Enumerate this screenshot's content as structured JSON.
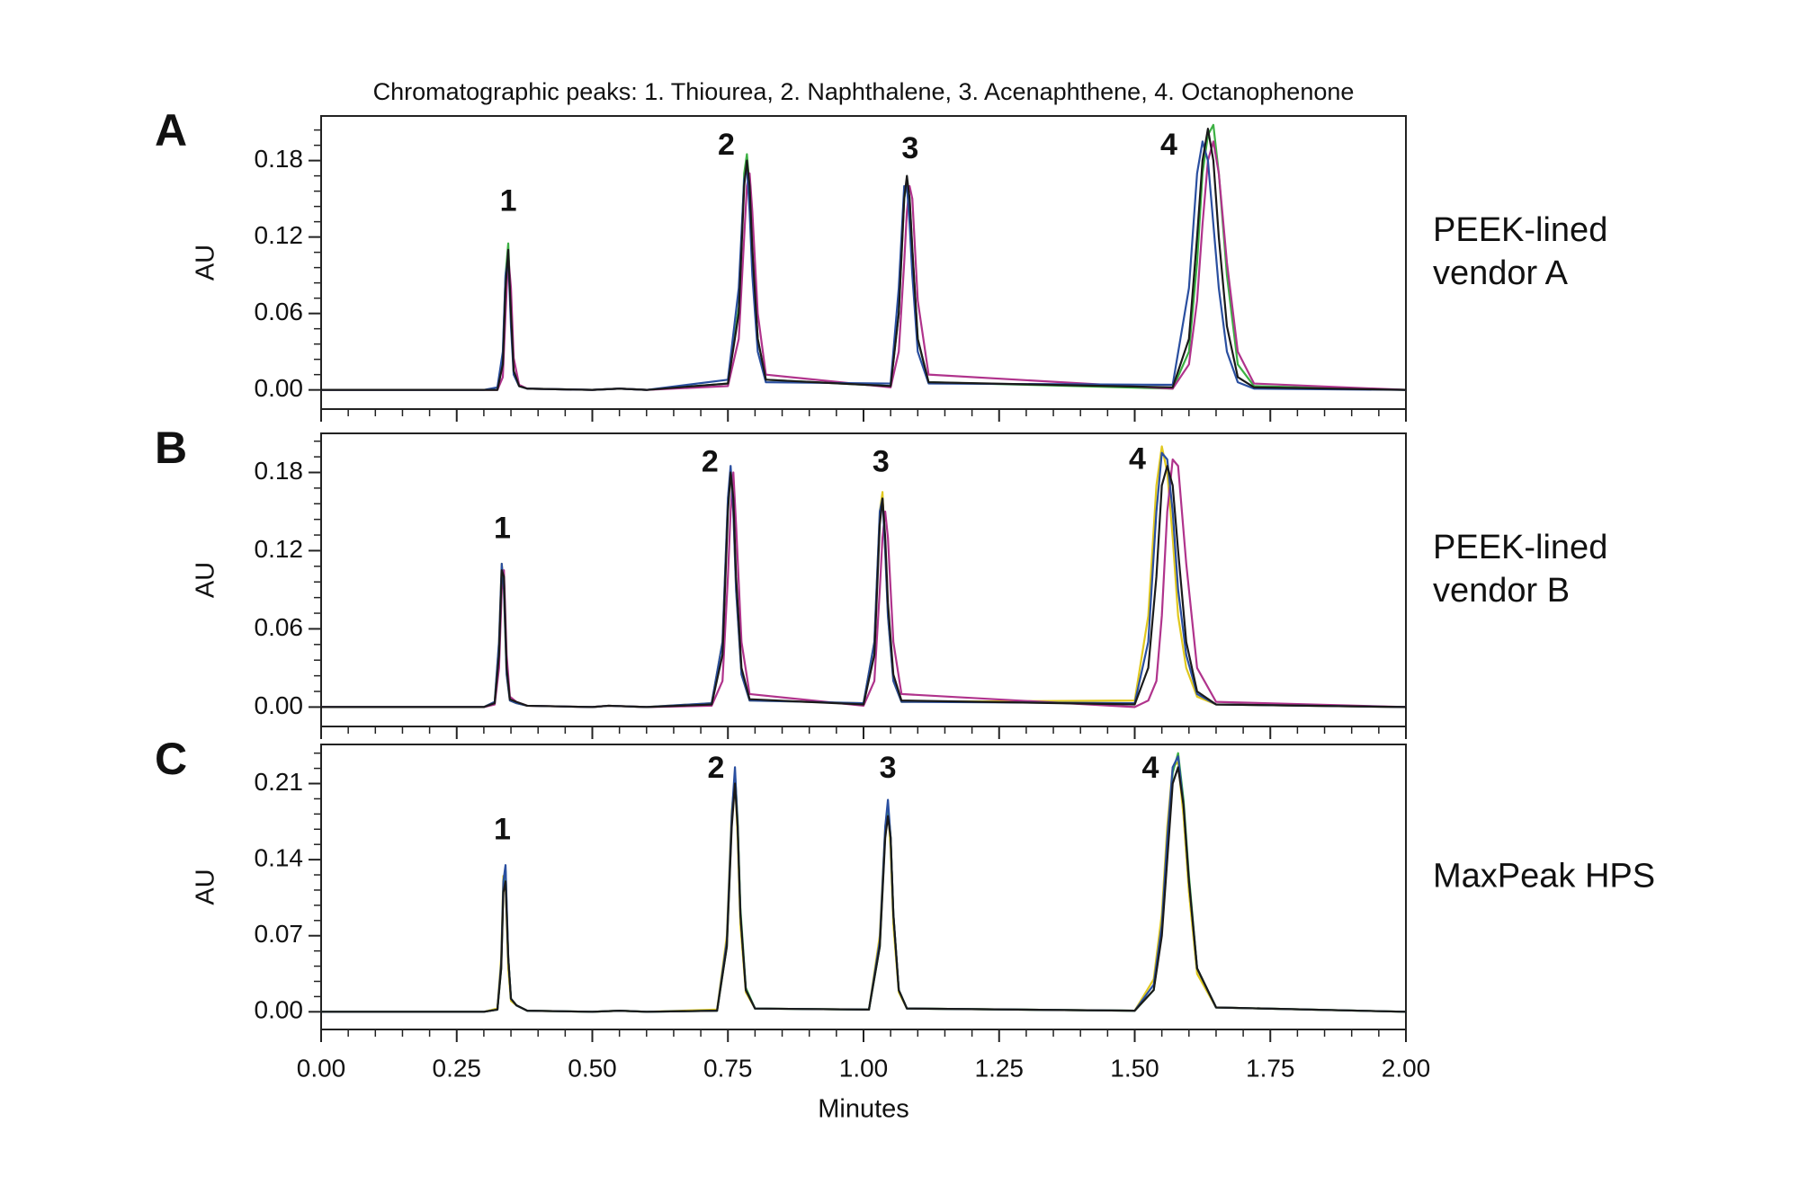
{
  "chart_data": [
    {
      "type": "line",
      "panel": "A",
      "title": "Chromatographic peaks: 1. Thiourea, 2. Naphthalene, 3. Acenaphthene, 4. Octanophenone",
      "side_label": [
        "PEEK-lined",
        "vendor A"
      ],
      "ylabel": "AU",
      "xlim": [
        0,
        2
      ],
      "xticks": [
        0,
        0.25,
        0.5,
        0.75,
        1,
        1.25,
        1.5,
        1.75,
        2
      ],
      "ylim": [
        -0.008,
        0.215
      ],
      "yticks": [
        {
          "value": 0,
          "label": "0.00"
        },
        0.06,
        0.12,
        0.18
      ],
      "annotations": [
        {
          "text": "1",
          "x": 0.345,
          "y": 0.147
        },
        {
          "text": "2",
          "x": 0.747,
          "y": 0.191
        },
        {
          "text": "3",
          "x": 1.086,
          "y": 0.188
        },
        {
          "text": "4",
          "x": 1.563,
          "y": 0.191
        }
      ],
      "x": [
        0,
        0.3,
        0.325,
        0.335,
        0.34,
        0.345,
        0.35,
        0.355,
        0.365,
        0.38,
        0.5,
        0.55,
        0.6,
        0.75,
        0.77,
        0.78,
        0.785,
        0.79,
        0.795,
        0.805,
        0.82,
        1.05,
        1.065,
        1.075,
        1.08,
        1.085,
        1.09,
        1.1,
        1.12,
        1.57,
        1.6,
        1.615,
        1.625,
        1.635,
        1.645,
        1.655,
        1.67,
        1.69,
        1.72,
        2
      ],
      "series": [
        {
          "color": "#3cb043",
          "values": [
            0,
            0,
            0,
            0.025,
            0.09,
            0.115,
            0.06,
            0.014,
            0.003,
            0.001,
            0,
            0.001,
            0,
            0.005,
            0.065,
            0.17,
            0.185,
            0.16,
            0.11,
            0.04,
            0.008,
            0.003,
            0.06,
            0.15,
            0.165,
            0.15,
            0.11,
            0.04,
            0.006,
            0.001,
            0.03,
            0.1,
            0.17,
            0.2,
            0.208,
            0.17,
            0.09,
            0.02,
            0.003,
            0
          ]
        },
        {
          "color": "#b0338c",
          "values": [
            0,
            0,
            0,
            0.01,
            0.06,
            0.105,
            0.08,
            0.025,
            0.004,
            0.001,
            0,
            0.001,
            0,
            0.003,
            0.04,
            0.12,
            0.16,
            0.17,
            0.14,
            0.06,
            0.012,
            0.002,
            0.03,
            0.1,
            0.14,
            0.16,
            0.15,
            0.07,
            0.012,
            0.001,
            0.02,
            0.07,
            0.13,
            0.18,
            0.195,
            0.17,
            0.1,
            0.03,
            0.005,
            0
          ]
        },
        {
          "color": "#2a4fa0",
          "values": [
            0,
            0,
            0.002,
            0.03,
            0.09,
            0.105,
            0.05,
            0.012,
            0.003,
            0.001,
            0,
            0.001,
            0,
            0.008,
            0.08,
            0.165,
            0.175,
            0.14,
            0.09,
            0.03,
            0.006,
            0.005,
            0.08,
            0.16,
            0.16,
            0.13,
            0.09,
            0.03,
            0.005,
            0.004,
            0.08,
            0.17,
            0.195,
            0.18,
            0.13,
            0.08,
            0.03,
            0.006,
            0.001,
            0
          ]
        },
        {
          "color": "#1a1a1a",
          "values": [
            0,
            0,
            0,
            0.02,
            0.08,
            0.11,
            0.06,
            0.015,
            0.003,
            0.001,
            0,
            0.001,
            0,
            0.005,
            0.06,
            0.16,
            0.18,
            0.16,
            0.11,
            0.04,
            0.008,
            0.003,
            0.06,
            0.15,
            0.168,
            0.15,
            0.11,
            0.04,
            0.006,
            0.002,
            0.04,
            0.12,
            0.18,
            0.205,
            0.18,
            0.12,
            0.05,
            0.01,
            0.002,
            0
          ]
        }
      ]
    },
    {
      "type": "line",
      "panel": "B",
      "side_label": [
        "PEEK-lined",
        "vendor B"
      ],
      "ylabel": "AU",
      "xlim": [
        0,
        2
      ],
      "xticks": [
        0,
        0.25,
        0.5,
        0.75,
        1,
        1.25,
        1.5,
        1.75,
        2
      ],
      "ylim": [
        -0.008,
        0.21
      ],
      "yticks": [
        {
          "value": 0,
          "label": "0.00"
        },
        0.06,
        0.12,
        0.18
      ],
      "annotations": [
        {
          "text": "1",
          "x": 0.334,
          "y": 0.136
        },
        {
          "text": "2",
          "x": 0.717,
          "y": 0.187
        },
        {
          "text": "3",
          "x": 1.032,
          "y": 0.187
        },
        {
          "text": "4",
          "x": 1.505,
          "y": 0.189
        }
      ],
      "x": [
        0,
        0.3,
        0.32,
        0.328,
        0.333,
        0.337,
        0.342,
        0.348,
        0.36,
        0.38,
        0.5,
        0.53,
        0.6,
        0.72,
        0.74,
        0.75,
        0.755,
        0.76,
        0.765,
        0.775,
        0.79,
        1,
        1.02,
        1.03,
        1.035,
        1.04,
        1.045,
        1.055,
        1.07,
        1.5,
        1.525,
        1.54,
        1.55,
        1.56,
        1.57,
        1.58,
        1.595,
        1.615,
        1.65,
        2
      ],
      "series": [
        {
          "color": "#e0c81e",
          "values": [
            0,
            0,
            0.004,
            0.05,
            0.11,
            0.09,
            0.025,
            0.005,
            0.003,
            0.001,
            0,
            0.001,
            0,
            0.003,
            0.05,
            0.16,
            0.18,
            0.15,
            0.09,
            0.025,
            0.005,
            0.003,
            0.05,
            0.15,
            0.165,
            0.12,
            0.07,
            0.02,
            0.004,
            0.005,
            0.07,
            0.17,
            0.2,
            0.18,
            0.13,
            0.07,
            0.03,
            0.008,
            0.002,
            0
          ]
        },
        {
          "color": "#b0338c",
          "values": [
            0,
            0,
            0.002,
            0.03,
            0.09,
            0.105,
            0.04,
            0.008,
            0.004,
            0.001,
            0,
            0.001,
            0,
            0.001,
            0.02,
            0.1,
            0.15,
            0.18,
            0.14,
            0.05,
            0.01,
            0.001,
            0.02,
            0.09,
            0.13,
            0.15,
            0.13,
            0.05,
            0.01,
            0,
            0.005,
            0.02,
            0.07,
            0.15,
            0.19,
            0.185,
            0.11,
            0.03,
            0.004,
            0
          ]
        },
        {
          "color": "#2a4fa0",
          "values": [
            0,
            0,
            0.004,
            0.05,
            0.11,
            0.09,
            0.025,
            0.005,
            0.003,
            0.001,
            0,
            0.001,
            0,
            0.003,
            0.05,
            0.16,
            0.185,
            0.15,
            0.09,
            0.025,
            0.005,
            0.003,
            0.05,
            0.15,
            0.16,
            0.12,
            0.07,
            0.02,
            0.004,
            0.003,
            0.05,
            0.15,
            0.195,
            0.19,
            0.15,
            0.09,
            0.04,
            0.01,
            0.002,
            0
          ]
        },
        {
          "color": "#1a1a1a",
          "values": [
            0,
            0,
            0.003,
            0.04,
            0.105,
            0.1,
            0.03,
            0.006,
            0.004,
            0.001,
            0,
            0.001,
            0,
            0.002,
            0.04,
            0.15,
            0.18,
            0.16,
            0.1,
            0.03,
            0.006,
            0.002,
            0.04,
            0.14,
            0.16,
            0.13,
            0.08,
            0.025,
            0.005,
            0.002,
            0.03,
            0.1,
            0.17,
            0.185,
            0.17,
            0.12,
            0.05,
            0.012,
            0.002,
            0
          ]
        }
      ]
    },
    {
      "type": "line",
      "panel": "C",
      "side_label": [
        "MaxPeak HPS"
      ],
      "ylabel": "AU",
      "xlabel": "Minutes",
      "xlim": [
        0,
        2
      ],
      "xticks": [
        {
          "value": 0,
          "label": "0.00"
        },
        0.25,
        {
          "value": 0.5,
          "label": "0.50"
        },
        0.75,
        {
          "value": 1,
          "label": "1.00"
        },
        1.25,
        {
          "value": 1.5,
          "label": "1.50"
        },
        1.75,
        {
          "value": 2,
          "label": "2.00"
        }
      ],
      "ylim": [
        -0.008,
        0.246
      ],
      "yticks": [
        {
          "value": 0,
          "label": "0.00"
        },
        0.07,
        0.14,
        0.21
      ],
      "annotations": [
        {
          "text": "1",
          "x": 0.334,
          "y": 0.166
        },
        {
          "text": "2",
          "x": 0.728,
          "y": 0.223
        },
        {
          "text": "3",
          "x": 1.045,
          "y": 0.223
        },
        {
          "text": "4",
          "x": 1.529,
          "y": 0.223
        }
      ],
      "x": [
        0,
        0.3,
        0.325,
        0.332,
        0.336,
        0.34,
        0.345,
        0.35,
        0.36,
        0.38,
        0.5,
        0.55,
        0.6,
        0.73,
        0.748,
        0.757,
        0.763,
        0.768,
        0.773,
        0.783,
        0.8,
        1.01,
        1.03,
        1.04,
        1.045,
        1.05,
        1.055,
        1.065,
        1.08,
        1.5,
        1.535,
        1.55,
        1.56,
        1.57,
        1.58,
        1.59,
        1.6,
        1.615,
        1.65,
        2
      ],
      "series": [
        {
          "color": "#e0c81e",
          "values": [
            0,
            0,
            0.003,
            0.05,
            0.125,
            0.12,
            0.04,
            0.01,
            0.006,
            0.001,
            0,
            0.001,
            0,
            0.002,
            0.07,
            0.185,
            0.215,
            0.16,
            0.08,
            0.018,
            0.003,
            0.002,
            0.07,
            0.17,
            0.19,
            0.15,
            0.08,
            0.018,
            0.003,
            0.001,
            0.03,
            0.09,
            0.17,
            0.225,
            0.23,
            0.18,
            0.11,
            0.035,
            0.004,
            0
          ]
        },
        {
          "color": "#3cb043",
          "values": [
            0,
            0,
            0.002,
            0.04,
            0.115,
            0.13,
            0.05,
            0.012,
            0.006,
            0.001,
            0,
            0.001,
            0,
            0.001,
            0.06,
            0.175,
            0.22,
            0.175,
            0.095,
            0.022,
            0.003,
            0.002,
            0.06,
            0.165,
            0.19,
            0.16,
            0.09,
            0.02,
            0.003,
            0.001,
            0.02,
            0.075,
            0.15,
            0.22,
            0.238,
            0.195,
            0.125,
            0.04,
            0.004,
            0
          ]
        },
        {
          "color": "#2a4fa0",
          "values": [
            0,
            0,
            0.002,
            0.045,
            0.12,
            0.135,
            0.05,
            0.012,
            0.006,
            0.001,
            0,
            0.001,
            0,
            0.001,
            0.065,
            0.18,
            0.225,
            0.17,
            0.09,
            0.02,
            0.003,
            0.002,
            0.065,
            0.17,
            0.195,
            0.16,
            0.09,
            0.02,
            0.003,
            0.001,
            0.025,
            0.08,
            0.16,
            0.225,
            0.235,
            0.19,
            0.12,
            0.04,
            0.004,
            0
          ]
        },
        {
          "color": "#1a1a1a",
          "values": [
            0,
            0,
            0.002,
            0.04,
            0.11,
            0.12,
            0.05,
            0.012,
            0.006,
            0.001,
            0,
            0.001,
            0,
            0.001,
            0.06,
            0.17,
            0.21,
            0.17,
            0.09,
            0.02,
            0.003,
            0.002,
            0.06,
            0.16,
            0.18,
            0.16,
            0.09,
            0.02,
            0.003,
            0.001,
            0.02,
            0.07,
            0.14,
            0.21,
            0.225,
            0.19,
            0.12,
            0.04,
            0.004,
            0
          ]
        }
      ]
    }
  ]
}
